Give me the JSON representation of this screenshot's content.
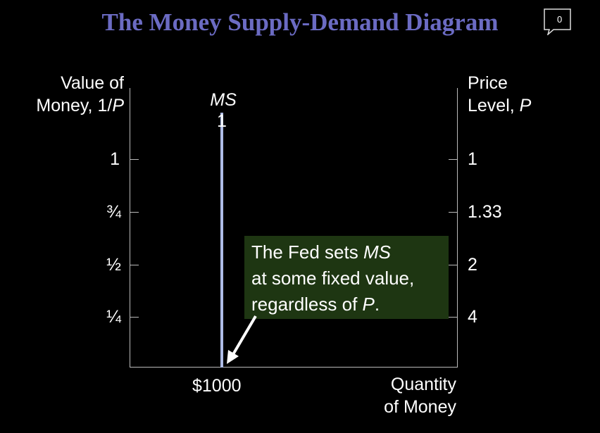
{
  "title": "The Money Supply-Demand Diagram",
  "comment_count": "0",
  "left_axis": {
    "label_line1": "Value of",
    "label_line2_prefix": "Money, 1/",
    "label_line2_var": "P",
    "ticks": [
      "1",
      "¾",
      "½",
      "¼"
    ]
  },
  "right_axis": {
    "label_line1": "Price",
    "label_line2_prefix": "Level, ",
    "label_line2_var": "P",
    "ticks": [
      "1",
      "1.33",
      "2",
      "4"
    ]
  },
  "x_axis": {
    "tick": "$1000",
    "label_line1": "Quantity",
    "label_line2": "of Money"
  },
  "ms_curve": {
    "label_main": "MS",
    "label_sub": "1"
  },
  "callout": {
    "line1_prefix": "The Fed sets ",
    "line1_var": "MS",
    "line2": "at some fixed value,",
    "line3_prefix": "regardless of ",
    "line3_var": "P",
    "line3_suffix": "."
  },
  "colors": {
    "title": "#6b6bc3",
    "ms_line": "#aebce6",
    "callout_bg": "#1e3612"
  }
}
